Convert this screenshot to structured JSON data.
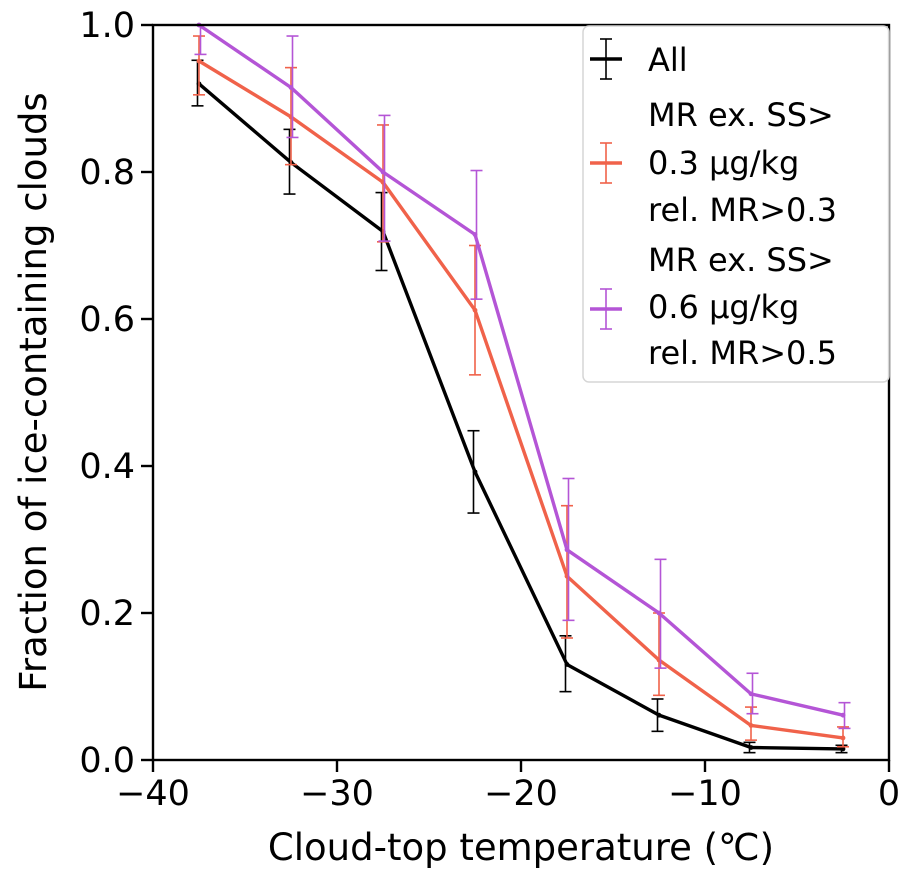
{
  "chart_data": {
    "type": "line",
    "title": "",
    "xlabel": "Cloud-top temperature (℃)",
    "ylabel": "Fraction of ice-containing clouds",
    "xlim": [
      -40,
      0
    ],
    "ylim": [
      0.0,
      1.0
    ],
    "x_ticks": [
      "−40",
      "−30",
      "−20",
      "−10",
      "0"
    ],
    "y_ticks": [
      "0.0",
      "0.2",
      "0.4",
      "0.6",
      "0.8",
      "1.0"
    ],
    "grid": false,
    "legend_position": "top-right",
    "x": [
      -37.5,
      -32.5,
      -27.5,
      -22.5,
      -17.5,
      -12.5,
      -7.5,
      -2.5
    ],
    "series": [
      {
        "name": "All",
        "color": "#000000",
        "values": [
          0.92,
          0.813,
          0.719,
          0.392,
          0.13,
          0.061,
          0.017,
          0.015
        ],
        "err_low": [
          0.89,
          0.77,
          0.666,
          0.336,
          0.093,
          0.039,
          0.01,
          0.01
        ],
        "err_high": [
          0.952,
          0.858,
          0.772,
          0.448,
          0.169,
          0.083,
          0.024,
          0.02
        ]
      },
      {
        "name_lines": [
          "MR ex. SS>",
          "0.3 µg/kg",
          "rel. MR>0.3"
        ],
        "color": "#f0624a",
        "values": [
          0.951,
          0.875,
          0.786,
          0.612,
          0.25,
          0.136,
          0.047,
          0.03
        ],
        "err_low": [
          0.905,
          0.81,
          0.705,
          0.524,
          0.166,
          0.088,
          0.027,
          0.018
        ],
        "err_high": [
          0.985,
          0.942,
          0.864,
          0.7,
          0.346,
          0.2,
          0.072,
          0.045
        ]
      },
      {
        "name_lines": [
          "MR ex. SS>",
          "0.6 µg/kg",
          "rel. MR>0.5"
        ],
        "color": "#b455d6",
        "values": [
          1.0,
          0.915,
          0.8,
          0.715,
          0.286,
          0.2,
          0.09,
          0.061
        ],
        "err_low": [
          0.96,
          0.847,
          0.706,
          0.627,
          0.19,
          0.125,
          0.063,
          0.043
        ],
        "err_high": [
          1.0,
          0.985,
          0.877,
          0.802,
          0.383,
          0.273,
          0.118,
          0.078
        ]
      }
    ]
  }
}
